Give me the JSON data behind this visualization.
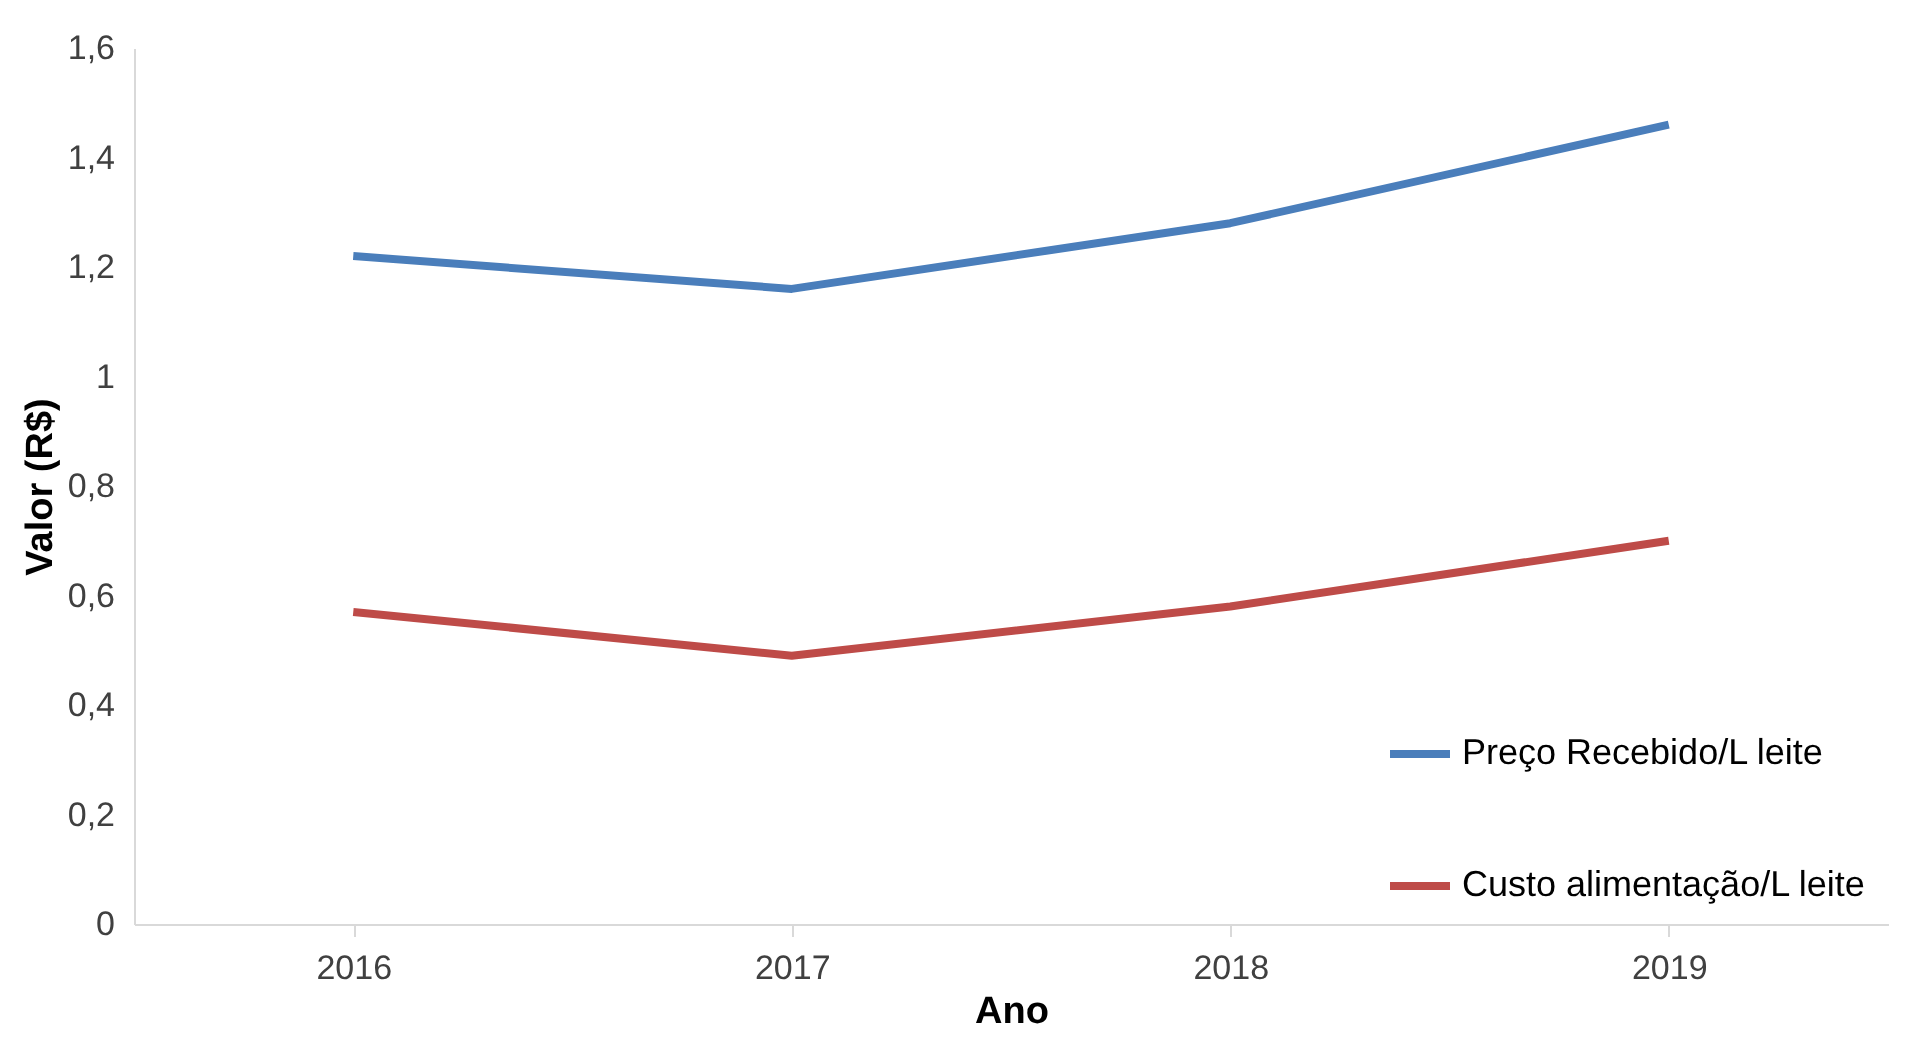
{
  "chart_data": {
    "type": "line",
    "xlabel": "Ano",
    "ylabel": "Valor  (R$)",
    "categories": [
      "2016",
      "2017",
      "2018",
      "2019"
    ],
    "series": [
      {
        "name": "Preço Recebido/L leite",
        "color": "#4a7ebb",
        "values": [
          1.22,
          1.16,
          1.28,
          1.46
        ]
      },
      {
        "name": "Custo alimentação/L leite",
        "color": "#be4b48",
        "values": [
          0.57,
          0.49,
          0.58,
          0.7
        ]
      }
    ],
    "ylim": [
      0,
      1.6
    ],
    "yticks": [
      0,
      {
        "value": 0.2,
        "label": "0,2"
      },
      {
        "value": 0.4,
        "label": "0,4"
      },
      {
        "value": 0.6,
        "label": "0,6"
      },
      {
        "value": 0.8,
        "label": "0,8"
      },
      1,
      {
        "value": 1.2,
        "label": "1,2"
      },
      {
        "value": 1.4,
        "label": "1,4"
      },
      {
        "value": 1.6,
        "label": "1,6"
      }
    ],
    "grid": false,
    "legend": "right",
    "marker": "none",
    "line_style": "solid"
  }
}
